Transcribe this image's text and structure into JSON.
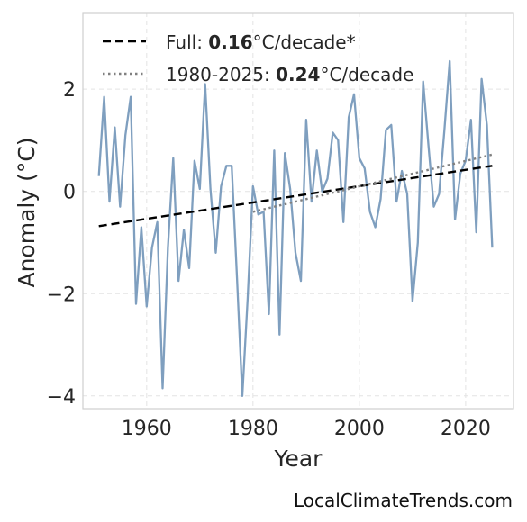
{
  "chart_data": {
    "type": "line",
    "xlabel": "Year",
    "ylabel": "Anomaly (°C)",
    "xlim": [
      1948,
      2029
    ],
    "ylim": [
      -4.25,
      3.5
    ],
    "x_ticks": [
      1960,
      1980,
      2000,
      2020
    ],
    "y_ticks": [
      -4,
      -2,
      0,
      2
    ],
    "y_tick_labels": [
      "−4",
      "−2",
      "0",
      "2"
    ],
    "grid": true,
    "legend_position": "top-left",
    "series": [
      {
        "color": "#7f9fbf",
        "style": "solid",
        "x": [
          1951,
          1952,
          1953,
          1954,
          1955,
          1956,
          1957,
          1958,
          1959,
          1960,
          1961,
          1962,
          1963,
          1964,
          1965,
          1966,
          1967,
          1968,
          1969,
          1970,
          1971,
          1972,
          1973,
          1974,
          1975,
          1976,
          1977,
          1978,
          1979,
          1980,
          1981,
          1982,
          1983,
          1984,
          1985,
          1986,
          1987,
          1988,
          1989,
          1990,
          1991,
          1992,
          1993,
          1994,
          1995,
          1996,
          1997,
          1998,
          1999,
          2000,
          2001,
          2002,
          2003,
          2004,
          2005,
          2006,
          2007,
          2008,
          2009,
          2010,
          2011,
          2012,
          2013,
          2014,
          2015,
          2016,
          2017,
          2018,
          2019,
          2020,
          2021,
          2022,
          2023,
          2024,
          2025
        ],
        "y": [
          0.3,
          1.85,
          -0.2,
          1.25,
          -0.3,
          1.1,
          1.85,
          -2.2,
          -0.7,
          -2.25,
          -1.1,
          -0.6,
          -3.85,
          -1.1,
          0.65,
          -1.75,
          -0.75,
          -1.5,
          0.6,
          0.05,
          2.1,
          0.05,
          -1.2,
          0.1,
          0.5,
          0.5,
          -1.7,
          -4.0,
          -2.1,
          0.1,
          -0.45,
          -0.4,
          -2.4,
          0.8,
          -2.8,
          0.75,
          0.05,
          -1.2,
          -1.75,
          1.4,
          -0.2,
          0.8,
          0.0,
          0.25,
          1.15,
          1.0,
          -0.6,
          1.45,
          1.9,
          0.65,
          0.45,
          -0.4,
          -0.7,
          -0.15,
          1.2,
          1.3,
          -0.2,
          0.4,
          -0.05,
          -2.15,
          -1.0,
          2.15,
          0.9,
          -0.3,
          -0.05,
          1.2,
          2.55,
          -0.55,
          0.35,
          0.6,
          1.4,
          -0.8,
          2.2,
          1.3,
          -1.1
        ]
      },
      {
        "name": "Full: 0.16°C/decade*",
        "color": "#000000",
        "style": "dashed",
        "x": [
          1951,
          2025
        ],
        "y": [
          -0.68,
          0.5
        ]
      },
      {
        "name": "1980-2025: 0.24°C/decade",
        "color": "#808080",
        "style": "dotted",
        "x": [
          1980,
          2025
        ],
        "y": [
          -0.4,
          0.72
        ]
      }
    ]
  },
  "legend": [
    {
      "prefix": "Full: ",
      "value": "0.16",
      "suffix": "°C/decade*"
    },
    {
      "prefix": "1980-2025: ",
      "value": "0.24",
      "suffix": "°C/decade"
    }
  ],
  "watermark": "LocalClimateTrends.com"
}
